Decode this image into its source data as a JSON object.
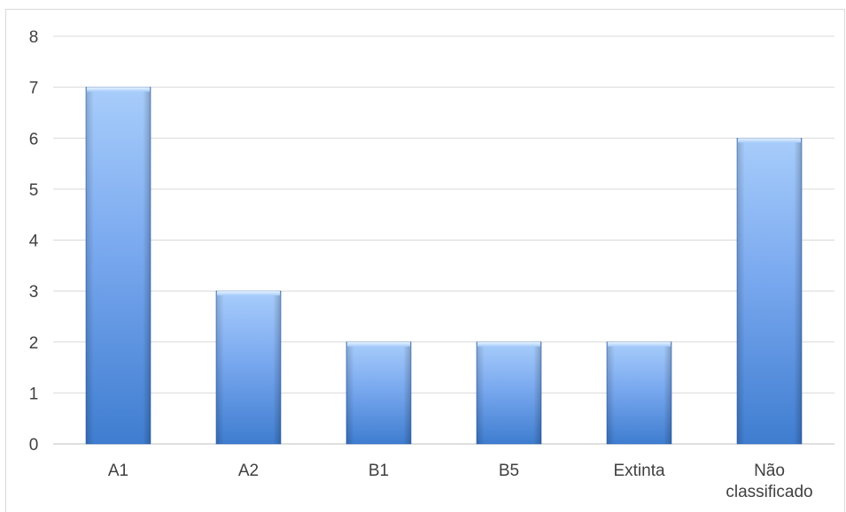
{
  "chart_data": {
    "type": "bar",
    "categories": [
      "A1",
      "A2",
      "B1",
      "B5",
      "Extinta",
      "Não classificado"
    ],
    "category_label_lines": [
      [
        "A1"
      ],
      [
        "A2"
      ],
      [
        "B1"
      ],
      [
        "B5"
      ],
      [
        "Extinta"
      ],
      [
        "Não",
        "classificado"
      ]
    ],
    "values": [
      7,
      3,
      2,
      2,
      2,
      6
    ],
    "title": "",
    "xlabel": "",
    "ylabel": "",
    "ylim": [
      0,
      8
    ],
    "yticks": [
      0,
      1,
      2,
      3,
      4,
      5,
      6,
      7,
      8
    ],
    "grid": true,
    "legend": "none",
    "colors": {
      "bar_light": "#a8cdfb",
      "bar_mid": "#7aa9ef",
      "bar_dark": "#3f7dd0",
      "bar_edge": "#2f66b8",
      "gridline": "#d9d9d9",
      "axis_line": "#bfbfbf",
      "text": "#404040"
    }
  }
}
